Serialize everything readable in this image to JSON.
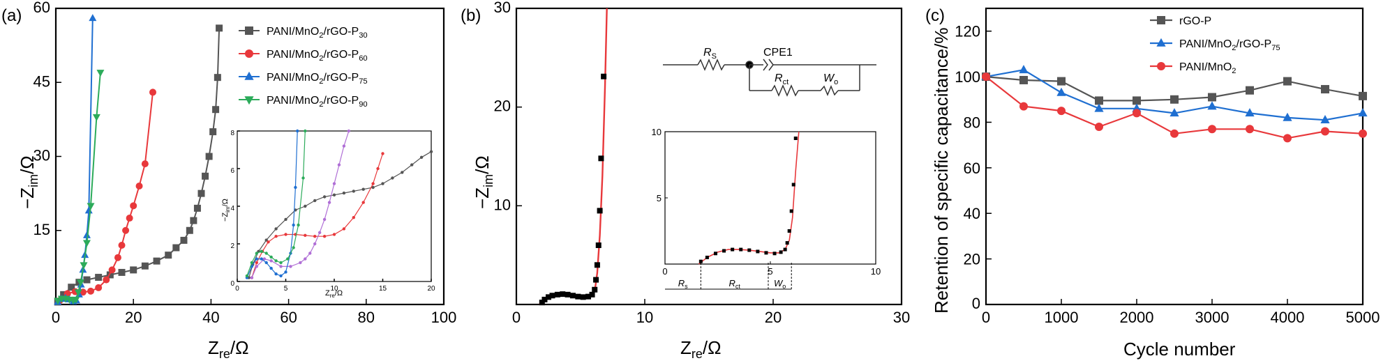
{
  "panels": {
    "a": {
      "label": "(a)",
      "xlabel_main": "Z",
      "xlabel_sub": "re",
      "xlabel_unit": "/Ω",
      "ylabel_prefix": "−Z",
      "ylabel_sub": "im",
      "ylabel_unit": "/Ω",
      "inset_xlabel_main": "Z",
      "inset_xlabel_sub": "re",
      "inset_xlabel_unit": "/Ω",
      "inset_ylabel_prefix": "−Z",
      "inset_ylabel_sub": "im",
      "inset_ylabel_unit": "/Ω"
    },
    "b": {
      "label": "(b)",
      "xlabel_main": "Z",
      "xlabel_sub": "re",
      "xlabel_unit": "/Ω",
      "ylabel_prefix": "−Z",
      "ylabel_sub": "im",
      "ylabel_unit": "/Ω",
      "circuit": {
        "rs_main": "R",
        "rs_sub": "S",
        "cpe": "CPE1",
        "rct_main": "R",
        "rct_sub": "ct",
        "wo_main": "W",
        "wo_sub": "o"
      },
      "inset_segments": [
        {
          "main": "R",
          "sub": "s"
        },
        {
          "main": "R",
          "sub": "ct"
        },
        {
          "main": "W",
          "sub": "o"
        }
      ]
    },
    "c": {
      "label": "(c)",
      "xlabel": "Cycle number",
      "ylabel": "Retention of specific capacitance/%"
    }
  },
  "colors": {
    "gray": "#555555",
    "red": "#e8383b",
    "blue": "#1f6fd1",
    "green": "#2cab5a",
    "purple": "#b06fd6",
    "black": "#000000"
  },
  "chart_data": [
    {
      "id": "a",
      "type": "line",
      "xlim": [
        0,
        100
      ],
      "ylim": [
        0,
        60
      ],
      "xticks": [
        0,
        20,
        40,
        60,
        80,
        100
      ],
      "yticks": [
        15,
        30,
        45,
        60
      ],
      "series": [
        {
          "name_main": "PANI/MnO",
          "name_sub1": "2",
          "name_mid": "/rGO-P",
          "name_sub2": "30",
          "color": "#555555",
          "marker": "square",
          "x": [
            0.5,
            2,
            4,
            6,
            8,
            11,
            14,
            17,
            20,
            23,
            26,
            29,
            31,
            33,
            34.5,
            35.5,
            36.5,
            37.5,
            38.5,
            39.5,
            40.5,
            41.2,
            41.7,
            42.1
          ],
          "y": [
            0.5,
            2,
            3.5,
            4.5,
            5,
            5.5,
            6,
            6.5,
            7,
            7.8,
            8.8,
            10,
            11.5,
            13,
            15,
            17,
            19.5,
            22.5,
            26,
            30,
            35,
            39.5,
            46,
            56
          ]
        },
        {
          "name_main": "PANI/MnO",
          "name_sub1": "2",
          "name_mid": "/rGO-P",
          "name_sub2": "60",
          "color": "#e8383b",
          "marker": "circle",
          "x": [
            1,
            3,
            5,
            7,
            9,
            11,
            13,
            14.5,
            16,
            17,
            18,
            19,
            20,
            21.5,
            23,
            25
          ],
          "y": [
            0.8,
            2.2,
            2.6,
            2.5,
            2.7,
            3.4,
            5,
            7,
            9.5,
            12,
            15,
            17.5,
            20,
            24,
            28.5,
            43
          ]
        },
        {
          "name_main": "PANI/MnO",
          "name_sub1": "2",
          "name_mid": "/rGO-P",
          "name_sub2": "75",
          "color": "#1f6fd1",
          "marker": "triangle",
          "x": [
            0.5,
            1.5,
            2.5,
            3.5,
            4.5,
            5.3,
            6,
            6.5,
            7,
            7.5,
            8,
            8.5,
            9.5
          ],
          "y": [
            0.5,
            1.1,
            1.3,
            1.0,
            0.6,
            0.8,
            2,
            4,
            7,
            10,
            14,
            19,
            58
          ]
        },
        {
          "name_main": "PANI/MnO",
          "name_sub1": "2",
          "name_mid": "/rGO-P",
          "name_sub2": "90",
          "color": "#2cab5a",
          "marker": "triangle-down",
          "x": [
            0.5,
            1.5,
            2.5,
            3.5,
            4.5,
            5.2,
            5.8,
            6.4,
            7.2,
            8,
            9,
            10.5,
            11.5
          ],
          "y": [
            0.8,
            1.2,
            1.2,
            1.0,
            0.8,
            1,
            2.5,
            4.5,
            8,
            12.5,
            20,
            38,
            47
          ]
        }
      ],
      "inset": {
        "xlim": [
          0,
          20
        ],
        "ylim": [
          0,
          8
        ],
        "xticks": [
          0,
          5,
          10,
          15,
          20
        ],
        "yticks": [
          0,
          2,
          4,
          6,
          8
        ],
        "series": [
          {
            "color": "#555555",
            "x": [
              1.2,
              1.6,
              2.2,
              3,
              4,
              5,
              6,
              7,
              8,
              9,
              10,
              11,
              12,
              13,
              14,
              15,
              16,
              17,
              18,
              19,
              20
            ],
            "y": [
              0.2,
              0.9,
              1.6,
              2.2,
              2.8,
              3.3,
              3.8,
              4.0,
              4.3,
              4.5,
              4.6,
              4.7,
              4.8,
              4.9,
              5.0,
              5.2,
              5.5,
              5.8,
              6.2,
              6.6,
              6.9
            ]
          },
          {
            "color": "#e8383b",
            "x": [
              1.5,
              2,
              2.6,
              3.2,
              4,
              5,
              6,
              7,
              8,
              9,
              10,
              11,
              12,
              13,
              14,
              14.5,
              15
            ],
            "y": [
              0.2,
              1,
              1.6,
              2.1,
              2.4,
              2.5,
              2.5,
              2.45,
              2.4,
              2.4,
              2.5,
              2.8,
              3.4,
              4.2,
              5.2,
              6,
              6.8
            ]
          },
          {
            "color": "#b06fd6",
            "x": [
              1.5,
              2,
              2.8,
              3.5,
              4.5,
              5.5,
              6.5,
              7,
              7.5,
              8,
              8.5,
              9,
              9.5,
              10,
              10.5,
              11,
              11.5
            ],
            "y": [
              0.2,
              0.8,
              1.2,
              1.1,
              0.8,
              0.8,
              1.0,
              1.2,
              1.5,
              2,
              2.6,
              3.3,
              4.2,
              5.2,
              6.2,
              7.2,
              8
            ]
          },
          {
            "color": "#1f6fd1",
            "x": [
              1,
              1.5,
              2,
              2.5,
              3,
              3.5,
              4,
              4.5,
              5,
              5.5,
              5.8,
              6,
              6.2
            ],
            "y": [
              0.2,
              0.8,
              1.2,
              1.2,
              1,
              0.7,
              0.4,
              0.3,
              0.5,
              1.5,
              3,
              5,
              8
            ]
          },
          {
            "color": "#2cab5a",
            "x": [
              1,
              1.5,
              2,
              2.5,
              3,
              3.5,
              4,
              4.5,
              5.2,
              5.8,
              6.3,
              6.8,
              7
            ],
            "y": [
              0.3,
              1,
              1.5,
              1.6,
              1.5,
              1.3,
              1.1,
              1,
              1.2,
              1.8,
              3,
              5.5,
              8
            ]
          }
        ]
      }
    },
    {
      "id": "b",
      "type": "scatter",
      "xlim": [
        0,
        30
      ],
      "ylim": [
        0,
        30
      ],
      "xticks": [
        0,
        10,
        20,
        30
      ],
      "yticks": [
        10,
        20,
        30
      ],
      "points": {
        "x": [
          2.0,
          2.2,
          2.5,
          2.8,
          3.2,
          3.6,
          4.0,
          4.4,
          4.8,
          5.2,
          5.6,
          5.9,
          6.1,
          6.2,
          6.3,
          6.4,
          6.5,
          6.6,
          6.8
        ],
        "y": [
          0.2,
          0.5,
          0.75,
          0.9,
          1.0,
          1.05,
          1.0,
          0.9,
          0.8,
          0.75,
          0.8,
          1.0,
          1.5,
          2.5,
          4,
          6,
          9.5,
          14.8,
          23.1
        ]
      },
      "fit": {
        "x": [
          1.8,
          2.1,
          2.5,
          3,
          3.5,
          4,
          4.5,
          5,
          5.5,
          5.8,
          6.0,
          6.15,
          6.3,
          6.5,
          6.7,
          6.9,
          7.05
        ],
        "y": [
          0,
          0.5,
          0.8,
          1.0,
          1.05,
          1.0,
          0.9,
          0.8,
          0.8,
          0.9,
          1.2,
          1.8,
          3.2,
          7,
          13,
          22,
          30
        ]
      },
      "inset": {
        "xlim": [
          0,
          10
        ],
        "ylim": [
          0,
          10
        ],
        "xticks": [
          0,
          5,
          10
        ],
        "yticks": [
          5,
          10
        ],
        "points": {
          "x": [
            1.7,
            2,
            2.4,
            2.8,
            3.2,
            3.6,
            4.0,
            4.4,
            4.8,
            5.2,
            5.5,
            5.7,
            5.8,
            5.9,
            6.0,
            6.1,
            6.2
          ],
          "y": [
            0.2,
            0.5,
            0.8,
            1.0,
            1.1,
            1.1,
            1.05,
            0.95,
            0.85,
            0.8,
            0.9,
            1.1,
            1.6,
            2.5,
            4,
            6,
            9.5
          ]
        },
        "fit": {
          "x": [
            1.6,
            2,
            2.5,
            3,
            3.5,
            4,
            4.5,
            5,
            5.4,
            5.7,
            5.9,
            6.05,
            6.2,
            6.35
          ],
          "y": [
            0,
            0.5,
            0.9,
            1.1,
            1.1,
            1.05,
            0.95,
            0.85,
            0.85,
            1.1,
            1.8,
            3.5,
            7,
            10
          ]
        },
        "segment_bounds": [
          0,
          1.7,
          4.9,
          6.0
        ]
      }
    },
    {
      "id": "c",
      "type": "line",
      "xlim": [
        0,
        5000
      ],
      "ylim": [
        0,
        130
      ],
      "xticks": [
        0,
        1000,
        2000,
        3000,
        4000,
        5000
      ],
      "yticks": [
        20,
        40,
        60,
        80,
        100,
        120
      ],
      "x": [
        0,
        500,
        1000,
        1500,
        2000,
        2500,
        3000,
        3500,
        4000,
        4500,
        5000
      ],
      "series": [
        {
          "name": "rGO-P",
          "color": "#555555",
          "marker": "square",
          "values": [
            100,
            98.5,
            98,
            89.5,
            89.5,
            90,
            91,
            94,
            98,
            94.5,
            91.5
          ]
        },
        {
          "name_main": "PANI/MnO",
          "name_sub1": "2",
          "name_mid": "/rGO-P",
          "name_sub2": "75",
          "color": "#1f6fd1",
          "marker": "triangle",
          "values": [
            100,
            103,
            93,
            86,
            86,
            84,
            87,
            84,
            82,
            81,
            84
          ]
        },
        {
          "name_main": "PANI/MnO",
          "name_sub1": "2",
          "color": "#e8383b",
          "marker": "circle",
          "values": [
            100,
            87,
            85,
            78,
            84,
            75,
            77,
            77,
            73,
            76,
            75
          ]
        }
      ]
    }
  ]
}
